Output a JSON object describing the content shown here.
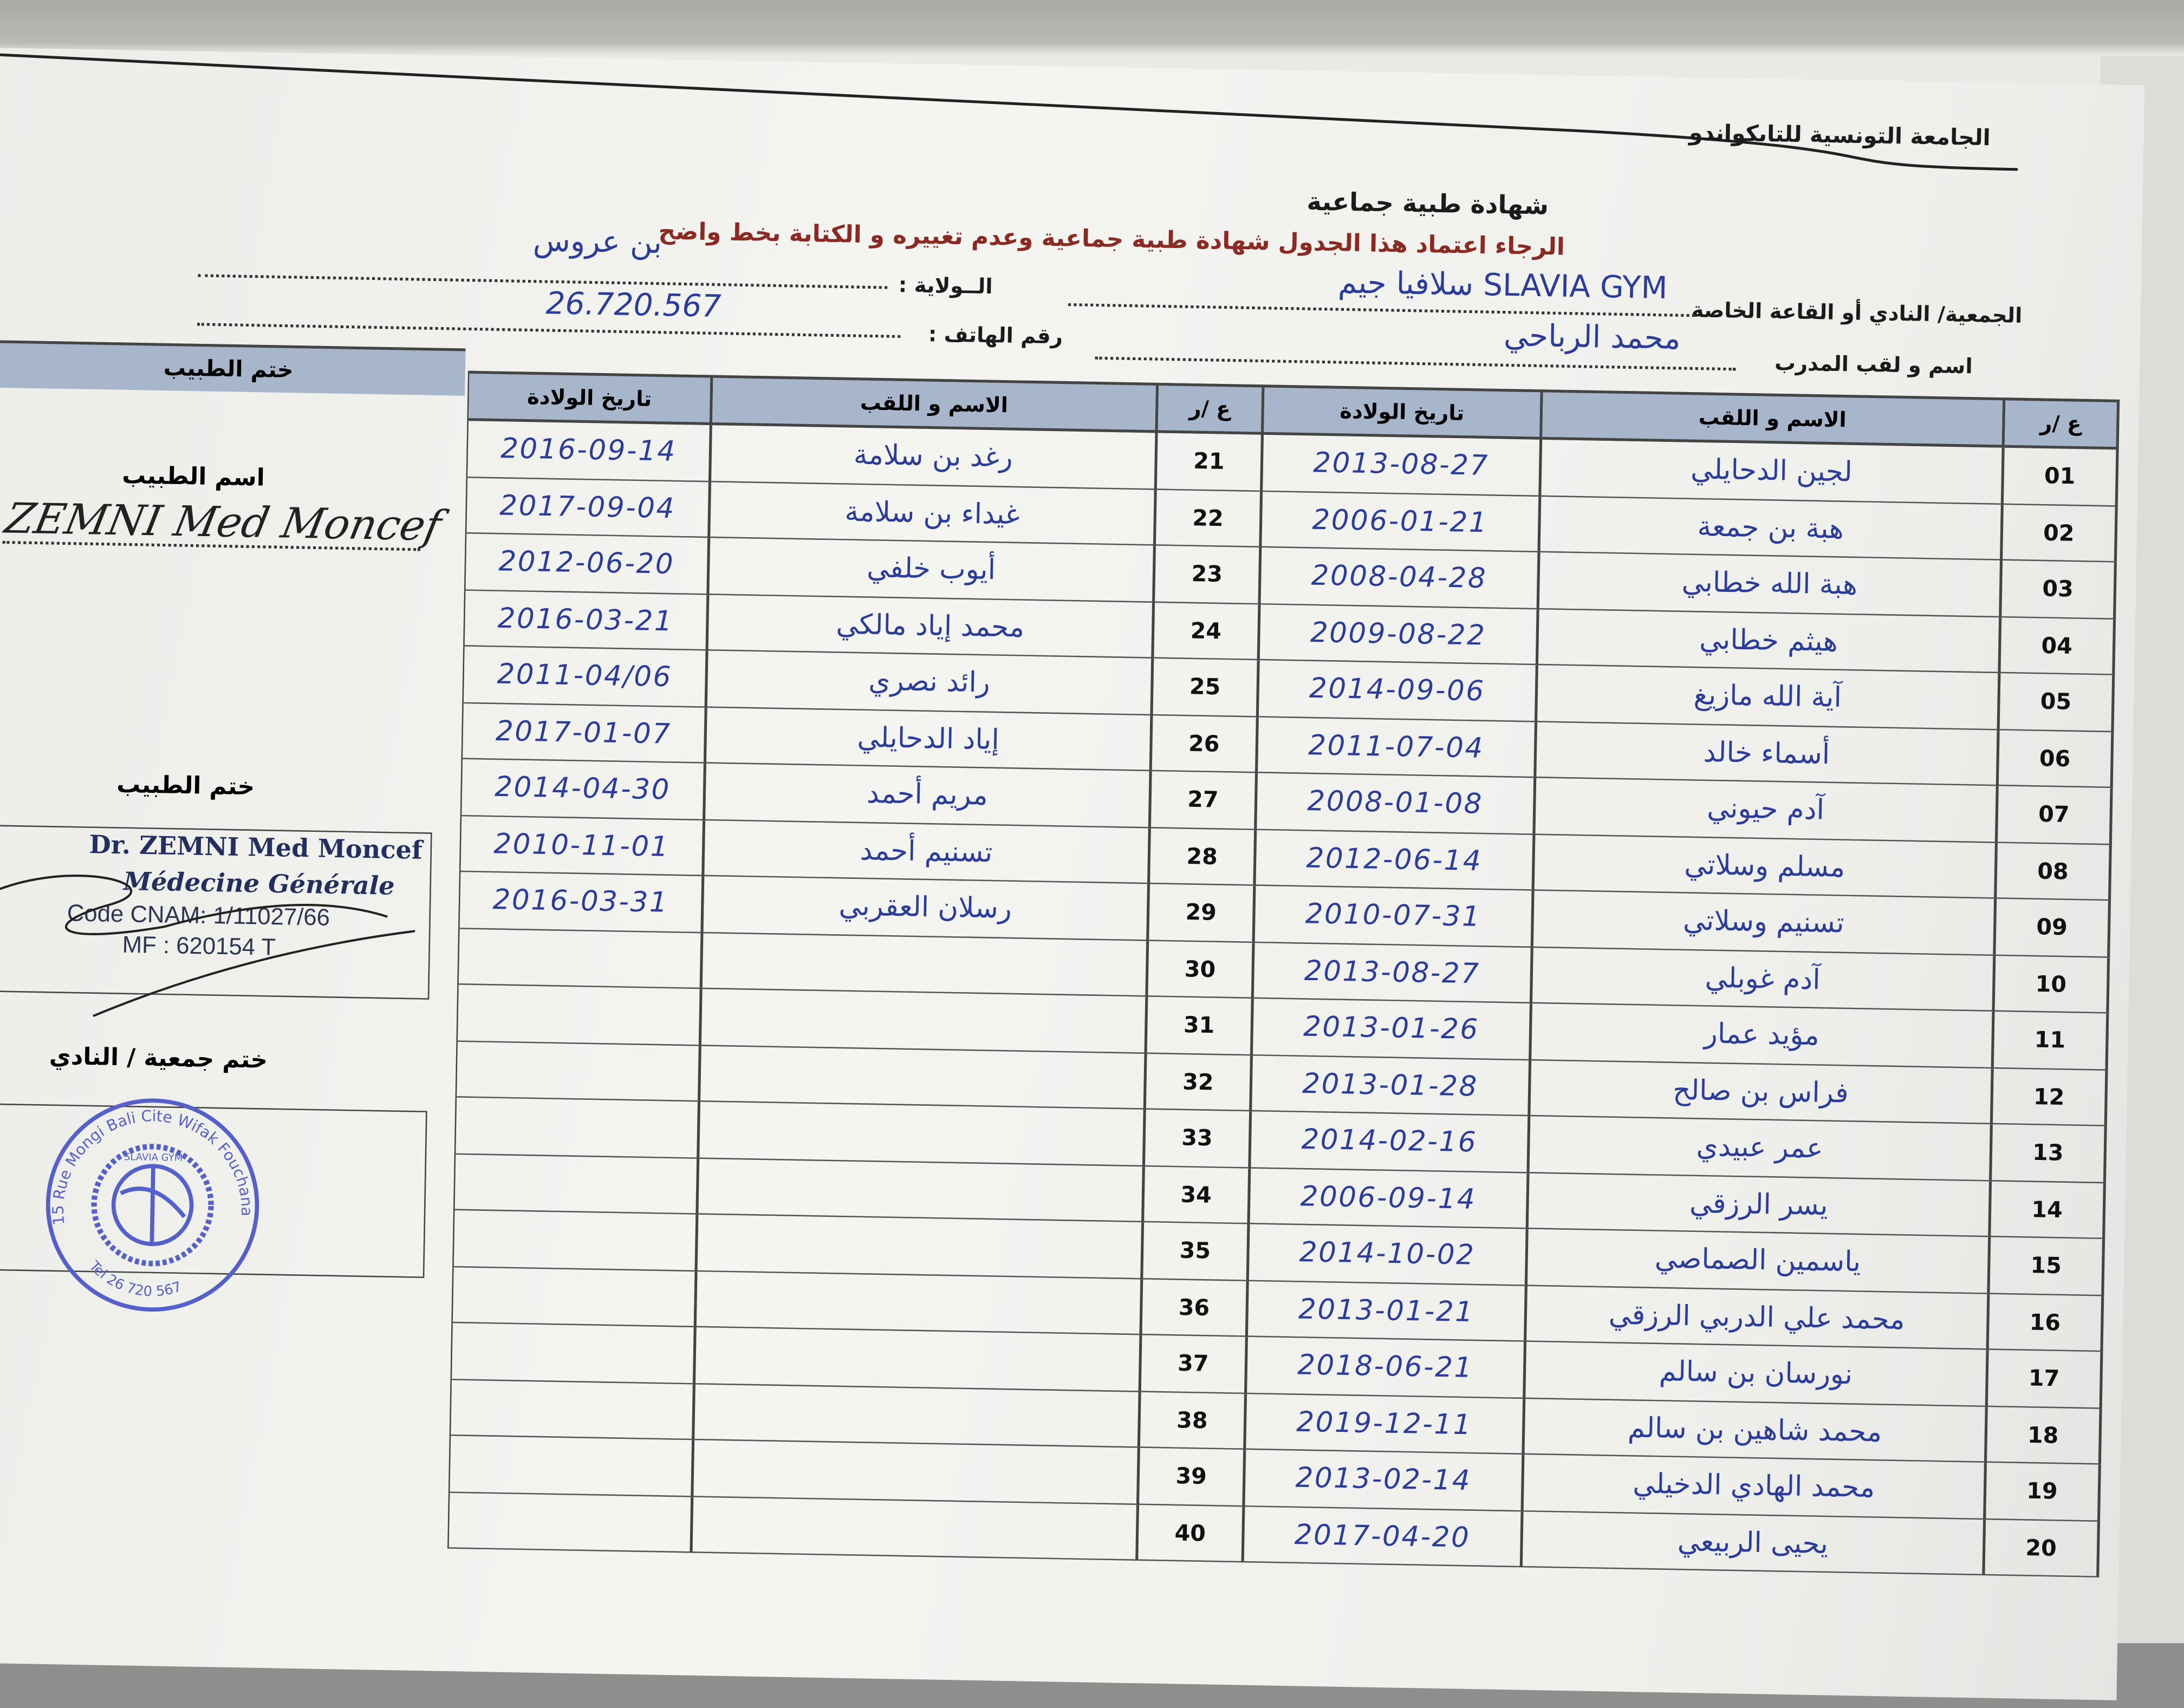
{
  "header": {
    "federation": "الجامعة التونسية للتايكواندو",
    "title": "شهادة طبية جماعية",
    "instruction": "الرجاء اعتماد هذا الجدول شهادة طبية جماعية وعدم تغييره و الكتابة بخط واضح"
  },
  "form": {
    "club_label": "الجمعية/ النادي أو القاعة الخاصة",
    "club_value": "سلافيا جيم SLAVIA GYM",
    "state_label": "الــولاية :",
    "state_value": "بن عروس",
    "coach_label": "اسم و لقب المدرب",
    "coach_value": "محمد الرباحي",
    "phone_label": "رقم الهاتف :",
    "phone_value": "26.720.567"
  },
  "table": {
    "headers": {
      "num": "ع /ر",
      "name": "الاسم و اللقب",
      "dob": "تاريخ الولادة"
    },
    "right_rows": [
      {
        "num": "01",
        "name": "لجين الدحايلي",
        "dob": "2013-08-27"
      },
      {
        "num": "02",
        "name": "هبة بن جمعة",
        "dob": "2006-01-21"
      },
      {
        "num": "03",
        "name": "هبة الله خطابي",
        "dob": "2008-04-28"
      },
      {
        "num": "04",
        "name": "هيثم خطابي",
        "dob": "2009-08-22"
      },
      {
        "num": "05",
        "name": "آية الله مازيغ",
        "dob": "2014-09-06"
      },
      {
        "num": "06",
        "name": "أسماء خالد",
        "dob": "2011-07-04"
      },
      {
        "num": "07",
        "name": "آدم حيوني",
        "dob": "2008-01-08"
      },
      {
        "num": "08",
        "name": "مسلم وسلاتي",
        "dob": "2012-06-14"
      },
      {
        "num": "09",
        "name": "تسنيم وسلاتي",
        "dob": "2010-07-31"
      },
      {
        "num": "10",
        "name": "آدم غوبلي",
        "dob": "2013-08-27"
      },
      {
        "num": "11",
        "name": "مؤيد عمار",
        "dob": "2013-01-26"
      },
      {
        "num": "12",
        "name": "فراس بن صالح",
        "dob": "2013-01-28"
      },
      {
        "num": "13",
        "name": "عمر عبيدي",
        "dob": "2014-02-16"
      },
      {
        "num": "14",
        "name": "يسر الرزقي",
        "dob": "2006-09-14"
      },
      {
        "num": "15",
        "name": "ياسمين الصماصي",
        "dob": "2014-10-02"
      },
      {
        "num": "16",
        "name": "محمد علي الدربي الرزقي",
        "dob": "2013-01-21"
      },
      {
        "num": "17",
        "name": "نورسان بن سالم",
        "dob": "2018-06-21"
      },
      {
        "num": "18",
        "name": "محمد شاهين بن سالم",
        "dob": "2019-12-11"
      },
      {
        "num": "19",
        "name": "محمد الهادي الدخيلي",
        "dob": "2013-02-14"
      },
      {
        "num": "20",
        "name": "يحيى الربيعي",
        "dob": "2017-04-20"
      }
    ],
    "middle_rows": [
      {
        "num": "21",
        "name": "رغد بن سلامة",
        "dob": "2016-09-14"
      },
      {
        "num": "22",
        "name": "غيداء بن سلامة",
        "dob": "2017-09-04"
      },
      {
        "num": "23",
        "name": "أيوب خلفي",
        "dob": "2012-06-20"
      },
      {
        "num": "24",
        "name": "محمد إياد مالكي",
        "dob": "2016-03-21"
      },
      {
        "num": "25",
        "name": "رائد نصري",
        "dob": "2011-04/06"
      },
      {
        "num": "26",
        "name": "إياد الدحايلي",
        "dob": "2017-01-07"
      },
      {
        "num": "27",
        "name": "مريم أحمد",
        "dob": "2014-04-30"
      },
      {
        "num": "28",
        "name": "تسنيم أحمد",
        "dob": "2010-11-01"
      },
      {
        "num": "29",
        "name": "رسلان العقربي",
        "dob": "2016-03-31"
      },
      {
        "num": "30",
        "name": "",
        "dob": ""
      },
      {
        "num": "31",
        "name": "",
        "dob": ""
      },
      {
        "num": "32",
        "name": "",
        "dob": ""
      },
      {
        "num": "33",
        "name": "",
        "dob": ""
      },
      {
        "num": "34",
        "name": "",
        "dob": ""
      },
      {
        "num": "35",
        "name": "",
        "dob": ""
      },
      {
        "num": "36",
        "name": "",
        "dob": ""
      },
      {
        "num": "37",
        "name": "",
        "dob": ""
      },
      {
        "num": "38",
        "name": "",
        "dob": ""
      },
      {
        "num": "39",
        "name": "",
        "dob": ""
      },
      {
        "num": "40",
        "name": "",
        "dob": ""
      }
    ]
  },
  "doctor": {
    "header": "ختم الطبيب",
    "name_label": "اسم الطبيب",
    "name_signature": "ZEMNI Med Moncef",
    "stamp_label": "ختم الطبيب",
    "stamp_line1": "Dr. ZEMNI Med Moncef",
    "stamp_line2": "Médecine Générale",
    "stamp_line3": "Code CNAM: 1/11027/66",
    "stamp_line4": "MF : 620154 T"
  },
  "club_stamp": {
    "label": "ختم جمعية / النادي",
    "address": "15 Rue Mongi Bali Cite Wifak Fouchana",
    "tel": "Tel 26 720 567",
    "name": "SLAVIA GYM"
  },
  "colors": {
    "ink": "#2c3d99",
    "header_bg": "#a7b6cb",
    "instruction": "#8b2a23",
    "stamp": "#5560c8"
  }
}
